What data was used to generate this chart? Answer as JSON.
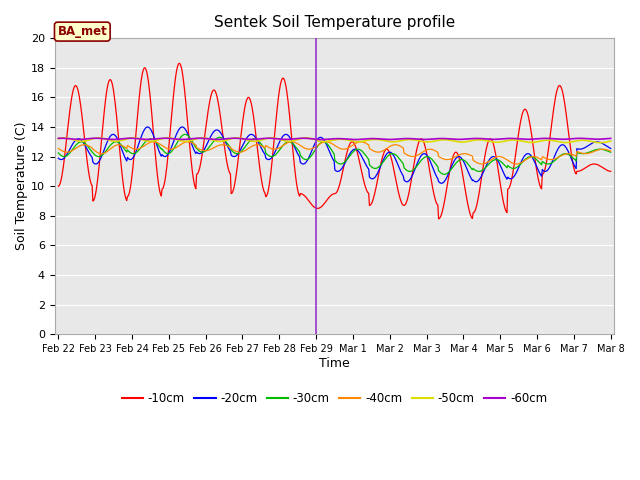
{
  "title": "Sentek Soil Temperature profile",
  "xlabel": "Time",
  "ylabel": "Soil Temperature (C)",
  "annotation_label": "BA_met",
  "ylim": [
    0,
    20
  ],
  "yticks": [
    0,
    2,
    4,
    6,
    8,
    10,
    12,
    14,
    16,
    18,
    20
  ],
  "plot_bg_color": "#e8e8e8",
  "fig_bg_color": "#ffffff",
  "vline_color": "#9933cc",
  "vline_x": 7,
  "series_colors": {
    "-10cm": "#ff0000",
    "-20cm": "#0000ff",
    "-30cm": "#00bb00",
    "-40cm": "#ff8800",
    "-50cm": "#dddd00",
    "-60cm": "#aa00cc"
  },
  "legend_entries": [
    "-10cm",
    "-20cm",
    "-30cm",
    "-40cm",
    "-50cm",
    "-60cm"
  ],
  "x_tick_labels": [
    "Feb 22",
    "Feb 23",
    "Feb 24",
    "Feb 25",
    "Feb 26",
    "Feb 27",
    "Feb 28",
    "Feb 29",
    "Mar 1",
    "Mar 2",
    "Mar 3",
    "Mar 4",
    "Mar 5",
    "Mar 6",
    "Mar 7",
    "Mar 8"
  ],
  "x_tick_positions": [
    0,
    1,
    2,
    3,
    4,
    5,
    6,
    7,
    8,
    9,
    10,
    11,
    12,
    13,
    14,
    15
  ],
  "n_days": 16,
  "n_per_day": 48,
  "daily_max_10": [
    16.8,
    17.2,
    18.0,
    18.3,
    16.5,
    16.0,
    17.3,
    8.5,
    13.0,
    12.5,
    13.2,
    12.3,
    13.2,
    15.2,
    16.8,
    11.5
  ],
  "daily_min_10": [
    10.0,
    9.0,
    9.3,
    9.8,
    10.8,
    9.5,
    9.3,
    9.5,
    9.5,
    8.7,
    8.7,
    7.8,
    8.2,
    9.8,
    10.8,
    11.0
  ],
  "daily_max_20": [
    13.2,
    13.5,
    14.0,
    14.0,
    13.8,
    13.5,
    13.5,
    13.3,
    12.5,
    12.3,
    12.2,
    12.0,
    12.0,
    12.2,
    12.8,
    13.0
  ],
  "daily_min_20": [
    11.8,
    11.5,
    11.8,
    12.0,
    12.2,
    12.0,
    11.8,
    11.5,
    11.0,
    10.5,
    10.3,
    10.2,
    10.3,
    10.5,
    11.0,
    12.5
  ],
  "daily_max_30": [
    13.0,
    13.0,
    13.2,
    13.5,
    13.3,
    13.2,
    13.0,
    13.0,
    12.5,
    12.2,
    12.0,
    11.8,
    11.8,
    12.0,
    12.2,
    12.5
  ],
  "daily_min_30": [
    12.0,
    12.0,
    12.2,
    12.2,
    12.3,
    12.2,
    12.0,
    11.8,
    11.5,
    11.2,
    11.0,
    10.8,
    11.0,
    11.2,
    11.5,
    12.2
  ],
  "daily_max_40": [
    12.8,
    12.8,
    13.0,
    13.0,
    12.8,
    12.8,
    13.0,
    13.0,
    13.0,
    12.8,
    12.5,
    12.2,
    12.0,
    12.0,
    12.2,
    12.5
  ],
  "daily_min_40": [
    12.3,
    12.2,
    12.5,
    12.5,
    12.4,
    12.3,
    12.5,
    12.5,
    12.5,
    12.3,
    12.0,
    11.8,
    11.5,
    11.5,
    11.8,
    12.2
  ],
  "peak_hour_10": 6,
  "peak_hour_20": 8,
  "peak_hour_30": 10,
  "peak_hour_40": 12
}
